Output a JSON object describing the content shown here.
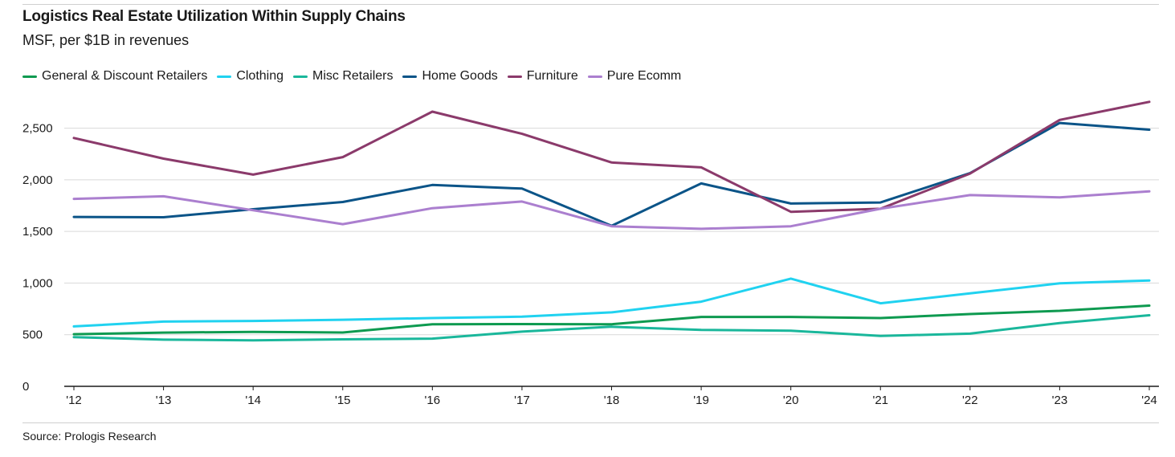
{
  "header": {
    "title": "Logistics Real Estate Utilization Within Supply Chains",
    "subtitle": "MSF, per $1B in revenues"
  },
  "footer": {
    "source": "Source: Prologis Research"
  },
  "chart_data": {
    "type": "line",
    "title": "Logistics Real Estate Utilization Within Supply Chains",
    "subtitle": "MSF, per $1B in revenues",
    "xlabel": "",
    "ylabel": "",
    "x": [
      "'12",
      "'13",
      "'14",
      "'15",
      "'16",
      "'17",
      "'18",
      "'19",
      "'20",
      "'21",
      "'22",
      "'23",
      "'24"
    ],
    "ylim": [
      0,
      2800
    ],
    "yticks": [
      0,
      500,
      1000,
      1500,
      2000,
      2500
    ],
    "ytick_labels": [
      "0",
      "500",
      "1,000",
      "1,500",
      "2,000",
      "2,500"
    ],
    "grid": true,
    "legend_position": "top-left",
    "series": [
      {
        "name": "General & Discount Retailers",
        "color": "#0e9a50",
        "values": [
          505,
          520,
          527,
          521,
          601,
          603,
          601,
          672,
          672,
          661,
          700,
          731,
          782
        ]
      },
      {
        "name": "Clothing",
        "color": "#20d2f0",
        "values": [
          580,
          627,
          633,
          645,
          661,
          674,
          716,
          820,
          1043,
          804,
          900,
          997,
          1025
        ]
      },
      {
        "name": "Misc Retailers",
        "color": "#1ab79b",
        "values": [
          477,
          452,
          446,
          455,
          462,
          530,
          577,
          546,
          539,
          488,
          510,
          613,
          688
        ]
      },
      {
        "name": "Home Goods",
        "color": "#0b5488",
        "values": [
          1640,
          1637,
          1715,
          1785,
          1950,
          1915,
          1555,
          1965,
          1770,
          1780,
          2065,
          2550,
          2485
        ]
      },
      {
        "name": "Furniture",
        "color": "#8b3a6b",
        "values": [
          2405,
          2205,
          2050,
          2220,
          2660,
          2445,
          2168,
          2120,
          1690,
          1720,
          2060,
          2580,
          2755
        ]
      },
      {
        "name": "Pure Ecomm",
        "color": "#ab7fcf",
        "values": [
          1815,
          1840,
          1705,
          1570,
          1725,
          1790,
          1550,
          1525,
          1550,
          1720,
          1852,
          1830,
          1888
        ]
      }
    ]
  }
}
